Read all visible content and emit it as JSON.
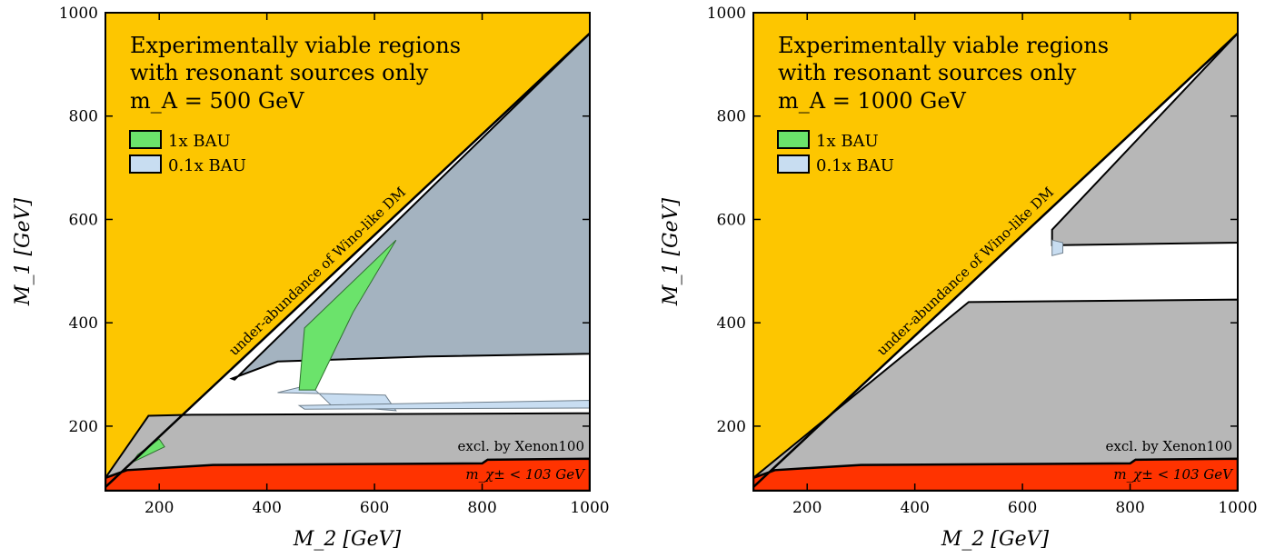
{
  "colors": {
    "allowed_yellow": "#FDC600",
    "chargino_red": "#FF3300",
    "xenon_grey": "#B7B7B7",
    "grey_blue": "#A4B3C0",
    "light_blue": "#C8DDF1",
    "green": "#6BE36B",
    "boundary": "#000000"
  },
  "chart_data": [
    {
      "type": "area",
      "title_lines": [
        "Experimentally viable regions",
        "with resonant sources only",
        "m_A = 500 GeV"
      ],
      "xlabel": "M_2 [GeV]",
      "ylabel": "M_1 [GeV]",
      "xlim": [
        100,
        1000
      ],
      "ylim": [
        75,
        1000
      ],
      "xticks": [
        200,
        400,
        600,
        800,
        1000
      ],
      "yticks": [
        200,
        400,
        600,
        800,
        1000
      ],
      "legend": [
        {
          "label": "1x BAU",
          "color": "#6BE36B"
        },
        {
          "label": "0.1x BAU",
          "color": "#C8DDF1"
        }
      ],
      "legend_position": "upper-left",
      "annotations": {
        "diagonal": "under-abundance of Wino-like DM",
        "xenon": "excl. by Xenon100",
        "chargino": "m_χ± < 103 GeV"
      },
      "regions": {
        "under_abundance_boundary": [
          [
            100,
            82
          ],
          [
            1000,
            960
          ]
        ],
        "chargino_bound": [
          [
            100,
            100
          ],
          [
            140,
            115
          ],
          [
            300,
            125
          ],
          [
            800,
            128
          ],
          [
            810,
            135
          ],
          [
            1000,
            137
          ]
        ],
        "xenon_excluded_lower": [
          [
            100,
            100
          ],
          [
            180,
            220
          ],
          [
            260,
            222
          ],
          [
            1000,
            225
          ]
        ],
        "xenon_excluded_upper": [
          [
            335,
            292
          ],
          [
            420,
            325
          ],
          [
            700,
            335
          ],
          [
            1000,
            340
          ],
          [
            1000,
            960
          ],
          [
            340,
            290
          ]
        ],
        "one_x_bau_strips": [
          [
            [
              460,
              270
            ],
            [
              490,
              270
            ],
            [
              560,
              420
            ],
            [
              640,
              560
            ],
            [
              470,
              390
            ]
          ],
          [
            [
              150,
              130
            ],
            [
              210,
              160
            ],
            [
              200,
              175
            ],
            [
              160,
              145
            ]
          ]
        ],
        "tenth_x_bau_strips": [
          [
            [
              420,
              265
            ],
            [
              620,
              260
            ],
            [
              640,
              230
            ],
            [
              520,
              240
            ],
            [
              480,
              280
            ]
          ],
          [
            [
              460,
              240
            ],
            [
              1000,
              250
            ],
            [
              1000,
              235
            ],
            [
              470,
              233
            ]
          ]
        ]
      }
    },
    {
      "type": "area",
      "title_lines": [
        "Experimentally viable regions",
        "with resonant sources only",
        "m_A = 1000 GeV"
      ],
      "xlabel": "M_2 [GeV]",
      "ylabel": "M_1 [GeV]",
      "xlim": [
        100,
        1000
      ],
      "ylim": [
        75,
        1000
      ],
      "xticks": [
        200,
        400,
        600,
        800,
        1000
      ],
      "yticks": [
        200,
        400,
        600,
        800,
        1000
      ],
      "legend": [
        {
          "label": "1x BAU",
          "color": "#6BE36B"
        },
        {
          "label": "0.1x BAU",
          "color": "#C8DDF1"
        }
      ],
      "legend_position": "upper-left",
      "annotations": {
        "diagonal": "under-abundance of Wino-like DM",
        "xenon": "excl. by Xenon100",
        "chargino": "m_χ± < 103 GeV"
      },
      "regions": {
        "under_abundance_boundary": [
          [
            100,
            82
          ],
          [
            1000,
            960
          ]
        ],
        "chargino_bound": [
          [
            100,
            100
          ],
          [
            140,
            115
          ],
          [
            300,
            125
          ],
          [
            800,
            128
          ],
          [
            810,
            135
          ],
          [
            1000,
            137
          ]
        ],
        "xenon_excluded_lower": [
          [
            100,
            100
          ],
          [
            500,
            440
          ],
          [
            1000,
            445
          ]
        ],
        "xenon_excluded_upper": [
          [
            655,
            550
          ],
          [
            1000,
            555
          ],
          [
            1000,
            960
          ],
          [
            655,
            580
          ]
        ],
        "tenth_x_bau_strips": [
          [
            [
              655,
              530
            ],
            [
              675,
              535
            ],
            [
              675,
              555
            ],
            [
              655,
              560
            ]
          ]
        ]
      }
    }
  ]
}
